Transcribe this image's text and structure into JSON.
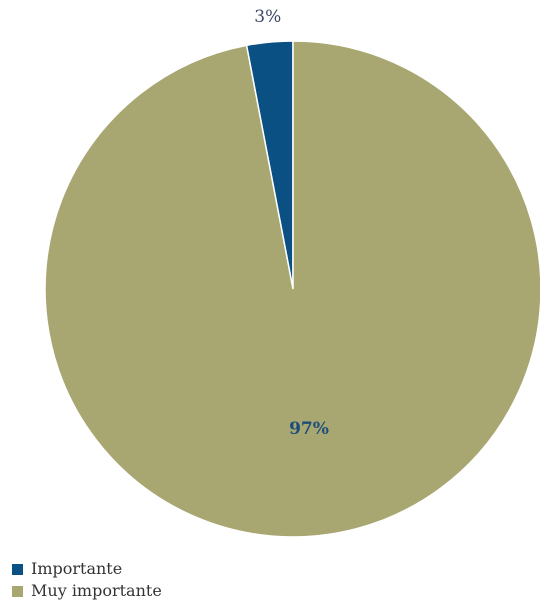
{
  "colors": {
    "importante": "#0b5083",
    "muy_importante": "#a8a671",
    "label_dark": "#3d4a66",
    "label_on_slice": "#1d4e7a"
  },
  "chart_data": {
    "type": "pie",
    "categories": [
      "Importante",
      "Muy importante"
    ],
    "values": [
      3,
      97
    ],
    "unit": "%",
    "data_labels": [
      "3%",
      "97%"
    ],
    "legend_position": "bottom-left",
    "start_angle": "12 o'clock",
    "direction": "counterclockwise from top for Importante"
  },
  "legend": {
    "items": [
      {
        "label": "Importante",
        "color": "#0b5083"
      },
      {
        "label": "Muy importante",
        "color": "#a8a671"
      }
    ]
  }
}
